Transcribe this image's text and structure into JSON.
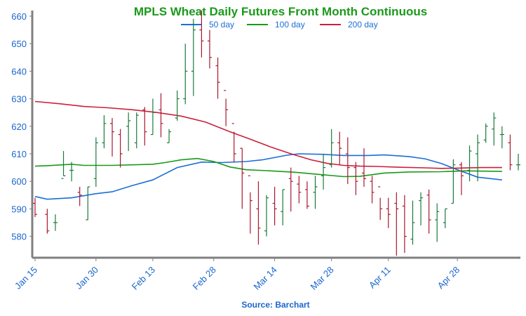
{
  "chart_data": {
    "type": "ohlc",
    "title": "MPLS Wheat Daily Futures Front Month Continuous",
    "source": "Source: Barchart",
    "ylim": [
      572,
      662
    ],
    "yticks": [
      580,
      590,
      600,
      610,
      620,
      630,
      640,
      650,
      660
    ],
    "xticks": [
      {
        "label": "Jan 15",
        "day": 0
      },
      {
        "label": "Jan 30",
        "day": 15
      },
      {
        "label": "Feb 13",
        "day": 29
      },
      {
        "label": "Feb 28",
        "day": 44
      },
      {
        "label": "Mar 14",
        "day": 59
      },
      {
        "label": "Mar 28",
        "day": 73
      },
      {
        "label": "Apr 11",
        "day": 87
      },
      {
        "label": "Apr 28",
        "day": 104
      }
    ],
    "grid": false,
    "legend_position": "top",
    "colors": {
      "up": "#1a7a3c",
      "down": "#a8192e",
      "axis_text": "#1a66cc",
      "title": "#1a9a1a"
    },
    "series": [
      {
        "name": "50 day",
        "color": "#1a6fd6",
        "points": [
          [
            0,
            594.5
          ],
          [
            3,
            593.5
          ],
          [
            9,
            594
          ],
          [
            15,
            595.5
          ],
          [
            19,
            596.2
          ],
          [
            24,
            598.5
          ],
          [
            29,
            600.5
          ],
          [
            35,
            605
          ],
          [
            41,
            607
          ],
          [
            46,
            606.8
          ],
          [
            52,
            607.2
          ],
          [
            56,
            607.8
          ],
          [
            62,
            609.5
          ],
          [
            65,
            610
          ],
          [
            71,
            609.8
          ],
          [
            76,
            609.4
          ],
          [
            82,
            609.4
          ],
          [
            86,
            609.6
          ],
          [
            92,
            609
          ],
          [
            96,
            608.2
          ],
          [
            100,
            606.5
          ],
          [
            104,
            604.2
          ],
          [
            109,
            601.5
          ],
          [
            115,
            600.5
          ]
        ]
      },
      {
        "name": "100 day",
        "color": "#1a9a1a",
        "points": [
          [
            0,
            605.5
          ],
          [
            3,
            605.7
          ],
          [
            9,
            606.2
          ],
          [
            12,
            605.8
          ],
          [
            19,
            605.8
          ],
          [
            24,
            606
          ],
          [
            29,
            606.2
          ],
          [
            32,
            606.8
          ],
          [
            36,
            607.8
          ],
          [
            40,
            608.3
          ],
          [
            44,
            607.2
          ],
          [
            48,
            605.2
          ],
          [
            52,
            604.2
          ],
          [
            58,
            603.8
          ],
          [
            64,
            603.3
          ],
          [
            70,
            602.5
          ],
          [
            76,
            601.7
          ],
          [
            80,
            601.8
          ],
          [
            86,
            603
          ],
          [
            92,
            603.4
          ],
          [
            100,
            603.5
          ],
          [
            106,
            603.8
          ],
          [
            115,
            603.6
          ]
        ]
      },
      {
        "name": "200 day",
        "color": "#cc1f3d",
        "points": [
          [
            0,
            629
          ],
          [
            6,
            628.2
          ],
          [
            12,
            627.2
          ],
          [
            18,
            626.7
          ],
          [
            24,
            626
          ],
          [
            30,
            625
          ],
          [
            36,
            623.7
          ],
          [
            42,
            621.5
          ],
          [
            48,
            618
          ],
          [
            53,
            615.3
          ],
          [
            58,
            612.5
          ],
          [
            63,
            610
          ],
          [
            68,
            607.8
          ],
          [
            72,
            606.5
          ],
          [
            76,
            605.8
          ],
          [
            80,
            605.5
          ],
          [
            84,
            605.4
          ],
          [
            90,
            605.1
          ],
          [
            96,
            604.9
          ],
          [
            100,
            604.7
          ],
          [
            104,
            604.8
          ],
          [
            110,
            605
          ],
          [
            115,
            605
          ]
        ]
      }
    ],
    "bars": [
      [
        0,
        592,
        594,
        587,
        588
      ],
      [
        3,
        588,
        590,
        581,
        582
      ],
      [
        5,
        585,
        588,
        582,
        585
      ],
      [
        7,
        601,
        611,
        602,
        602
      ],
      [
        9,
        604,
        607,
        600,
        604
      ],
      [
        11,
        596,
        598,
        591,
        595
      ],
      [
        13,
        586,
        598,
        586,
        598
      ],
      [
        15,
        601,
        616,
        598,
        614
      ],
      [
        17,
        614,
        624,
        612,
        621
      ],
      [
        19,
        621,
        623,
        609,
        618
      ],
      [
        21,
        617,
        619,
        605,
        610
      ],
      [
        23,
        620,
        625,
        611,
        622
      ],
      [
        25,
        614,
        625,
        612,
        624
      ],
      [
        27,
        626,
        627,
        613,
        618
      ],
      [
        29,
        617,
        630,
        617,
        625
      ],
      [
        31,
        626,
        632,
        616,
        621
      ],
      [
        33,
        614,
        619,
        614,
        618
      ],
      [
        35,
        623,
        633,
        622,
        630
      ],
      [
        37,
        630,
        650,
        628,
        640
      ],
      [
        39,
        640,
        659,
        631,
        655
      ],
      [
        41,
        655,
        662,
        645,
        651
      ],
      [
        43,
        651,
        655,
        641,
        645
      ],
      [
        45,
        642,
        645,
        630,
        636
      ],
      [
        47,
        633,
        630,
        620,
        626
      ],
      [
        49,
        621,
        618,
        607,
        610
      ],
      [
        51,
        612,
        612,
        590,
        603
      ],
      [
        53,
        602,
        596,
        581,
        593
      ],
      [
        55,
        590,
        600,
        577,
        583
      ],
      [
        57,
        582,
        595,
        580,
        594
      ],
      [
        59,
        592,
        598,
        584,
        590
      ],
      [
        61,
        589,
        597,
        584,
        597
      ],
      [
        63,
        601,
        605,
        589,
        600
      ],
      [
        65,
        599,
        602,
        592,
        596
      ],
      [
        67,
        597,
        600,
        590,
        591
      ],
      [
        69,
        596,
        602,
        590,
        598
      ],
      [
        71,
        602,
        610,
        597,
        605
      ],
      [
        73,
        606,
        619,
        605,
        614
      ],
      [
        75,
        614,
        618,
        606,
        612
      ],
      [
        77,
        610,
        616,
        599,
        605
      ],
      [
        79,
        605,
        607,
        595,
        600
      ],
      [
        81,
        603,
        612,
        598,
        601
      ],
      [
        83,
        600,
        602,
        592,
        596
      ],
      [
        85,
        598,
        594,
        586,
        590
      ],
      [
        87,
        590,
        594,
        583,
        588
      ],
      [
        89,
        592,
        596,
        573,
        590
      ],
      [
        91,
        591,
        595,
        574,
        580
      ],
      [
        93,
        579,
        593,
        577,
        585
      ],
      [
        95,
        593,
        596,
        584,
        594
      ],
      [
        97,
        595,
        597,
        581,
        586
      ],
      [
        99,
        586,
        592,
        578,
        589
      ],
      [
        101,
        585,
        590,
        583,
        590
      ],
      [
        103,
        592,
        608,
        592,
        606
      ],
      [
        105,
        606,
        607,
        595,
        602
      ],
      [
        107,
        604,
        613,
        600,
        611
      ],
      [
        109,
        610,
        617,
        600,
        614
      ],
      [
        111,
        615,
        621,
        614,
        620
      ],
      [
        113,
        619,
        625,
        613,
        623
      ],
      [
        115,
        617,
        620,
        612,
        617
      ],
      [
        117,
        614,
        617,
        604,
        606
      ],
      [
        119,
        606,
        610,
        604,
        606
      ]
    ]
  }
}
